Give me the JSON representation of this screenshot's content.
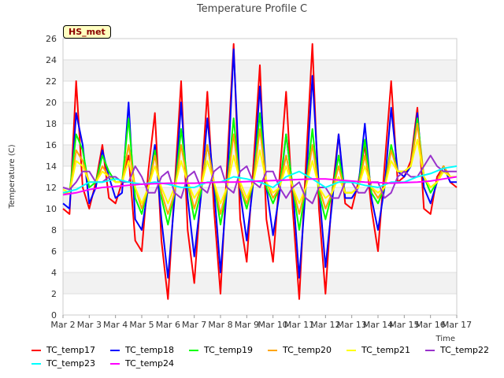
{
  "chart_data": {
    "type": "line",
    "title": "Temperature Profile C",
    "xlabel": "Time",
    "ylabel": "Temperature (C)",
    "badge": "HS_met",
    "x_ticks": [
      "Mar 2",
      "Mar 3",
      "Mar 4",
      "Mar 5",
      "Mar 6",
      "Mar 7",
      "Mar 8",
      "Mar 9",
      "Mar 10",
      "Mar 11",
      "Mar 12",
      "Mar 13",
      "Mar 14",
      "Mar 15",
      "Mar 16",
      "Mar 17"
    ],
    "xlim": [
      0,
      15
    ],
    "ylim": [
      0,
      26
    ],
    "y_ticks": [
      0,
      2,
      4,
      6,
      8,
      10,
      12,
      14,
      16,
      18,
      20,
      22,
      24,
      26
    ],
    "grid": true,
    "legend_position": "bottom",
    "x_unit": "days since Mar 2",
    "series": [
      {
        "name": "TC_temp17",
        "color": "#ff0000",
        "x": [
          0.0,
          0.25,
          0.5,
          0.75,
          1.0,
          1.25,
          1.5,
          1.75,
          2.0,
          2.25,
          2.5,
          2.75,
          3.0,
          3.25,
          3.5,
          3.75,
          4.0,
          4.25,
          4.5,
          4.75,
          5.0,
          5.25,
          5.5,
          5.75,
          6.0,
          6.25,
          6.5,
          6.75,
          7.0,
          7.25,
          7.5,
          7.75,
          8.0,
          8.25,
          8.5,
          8.75,
          9.0,
          9.25,
          9.5,
          9.75,
          10.0,
          10.25,
          10.5,
          10.75,
          11.0,
          11.25,
          11.5,
          11.75,
          12.0,
          12.25,
          12.5,
          12.75,
          13.0,
          13.25,
          13.5,
          13.75,
          14.0,
          14.25,
          14.5,
          14.75,
          15.0
        ],
        "values": [
          10.0,
          9.5,
          22.0,
          12.0,
          10.0,
          12.5,
          16.0,
          11.0,
          10.5,
          12.5,
          15.0,
          7.0,
          6.0,
          13.5,
          19.0,
          7.0,
          1.5,
          12.0,
          22.0,
          8.0,
          3.0,
          11.5,
          21.0,
          10.0,
          2.0,
          14.0,
          25.5,
          9.0,
          5.0,
          14.0,
          23.5,
          9.0,
          5.0,
          13.0,
          21.0,
          10.0,
          1.5,
          14.0,
          25.5,
          10.0,
          2.0,
          11.5,
          17.0,
          10.5,
          10.0,
          12.5,
          16.0,
          10.0,
          6.0,
          14.0,
          22.0,
          12.5,
          13.0,
          14.5,
          19.5,
          10.0,
          9.5,
          13.0,
          14.0,
          12.5,
          12.0
        ]
      },
      {
        "name": "TC_temp18",
        "color": "#0000ff",
        "x": [
          0.0,
          0.25,
          0.5,
          0.75,
          1.0,
          1.25,
          1.5,
          1.75,
          2.0,
          2.25,
          2.5,
          2.75,
          3.0,
          3.25,
          3.5,
          3.75,
          4.0,
          4.25,
          4.5,
          4.75,
          5.0,
          5.25,
          5.5,
          5.75,
          6.0,
          6.25,
          6.5,
          6.75,
          7.0,
          7.25,
          7.5,
          7.75,
          8.0,
          8.25,
          8.5,
          8.75,
          9.0,
          9.25,
          9.5,
          9.75,
          10.0,
          10.25,
          10.5,
          10.75,
          11.0,
          11.25,
          11.5,
          11.75,
          12.0,
          12.25,
          12.5,
          12.75,
          13.0,
          13.25,
          13.5,
          13.75,
          14.0,
          14.25,
          14.5,
          14.75,
          15.0
        ],
        "values": [
          10.5,
          10.0,
          19.0,
          16.0,
          10.5,
          12.0,
          15.5,
          13.0,
          11.0,
          11.5,
          20.0,
          9.0,
          8.0,
          12.0,
          16.0,
          9.0,
          3.5,
          11.0,
          20.0,
          11.0,
          5.5,
          11.0,
          18.5,
          12.0,
          4.0,
          12.0,
          25.0,
          11.5,
          7.0,
          12.5,
          21.5,
          12.0,
          7.5,
          11.5,
          17.0,
          12.0,
          3.5,
          12.0,
          22.5,
          12.0,
          4.5,
          10.5,
          17.0,
          11.0,
          11.0,
          12.0,
          18.0,
          11.0,
          8.0,
          12.0,
          19.5,
          13.5,
          13.0,
          14.0,
          19.0,
          12.0,
          10.5,
          12.5,
          14.0,
          12.5,
          12.5
        ]
      },
      {
        "name": "TC_temp19",
        "color": "#00ff00",
        "x": [
          0.0,
          0.25,
          0.5,
          0.75,
          1.0,
          1.25,
          1.5,
          1.75,
          2.0,
          2.25,
          2.5,
          2.75,
          3.0,
          3.25,
          3.5,
          3.75,
          4.0,
          4.25,
          4.5,
          4.75,
          5.0,
          5.25,
          5.5,
          5.75,
          6.0,
          6.25,
          6.5,
          6.75,
          7.0,
          7.25,
          7.5,
          7.75,
          8.0,
          8.25,
          8.5,
          8.75,
          9.0,
          9.25,
          9.5,
          9.75,
          10.0,
          10.25,
          10.5,
          10.75,
          11.0,
          11.25,
          11.5,
          11.75,
          12.0,
          12.25,
          12.5,
          12.75,
          13.0,
          13.25,
          13.5,
          13.75,
          14.0,
          14.25,
          14.5,
          14.75,
          15.0
        ],
        "values": [
          11.5,
          11.5,
          17.0,
          15.5,
          12.0,
          12.5,
          15.0,
          13.5,
          12.5,
          12.5,
          18.5,
          11.0,
          9.5,
          12.0,
          15.5,
          11.0,
          8.5,
          11.5,
          17.5,
          12.5,
          9.0,
          11.5,
          16.0,
          12.5,
          8.5,
          12.0,
          18.5,
          12.0,
          10.0,
          12.5,
          19.0,
          12.0,
          10.5,
          12.0,
          17.0,
          12.0,
          8.0,
          12.0,
          17.5,
          11.5,
          9.0,
          11.5,
          15.0,
          11.5,
          11.5,
          12.0,
          16.5,
          11.5,
          10.5,
          12.0,
          16.0,
          13.5,
          13.5,
          14.0,
          18.5,
          13.0,
          11.5,
          12.5,
          14.0,
          13.0,
          13.0
        ]
      },
      {
        "name": "TC_temp20",
        "color": "#ffa500",
        "x": [
          0.0,
          0.25,
          0.5,
          0.75,
          1.0,
          1.25,
          1.5,
          1.75,
          2.0,
          2.25,
          2.5,
          2.75,
          3.0,
          3.25,
          3.5,
          3.75,
          4.0,
          4.25,
          4.5,
          4.75,
          5.0,
          5.25,
          5.5,
          5.75,
          6.0,
          6.25,
          6.5,
          6.75,
          7.0,
          7.25,
          7.5,
          7.75,
          8.0,
          8.25,
          8.5,
          8.75,
          9.0,
          9.25,
          9.5,
          9.75,
          10.0,
          10.25,
          10.5,
          10.75,
          11.0,
          11.25,
          11.5,
          11.75,
          12.0,
          12.25,
          12.5,
          12.75,
          13.0,
          13.25,
          13.5,
          13.75,
          14.0,
          14.25,
          14.5,
          14.75,
          15.0
        ],
        "values": [
          11.5,
          11.5,
          15.5,
          14.5,
          12.5,
          12.5,
          14.0,
          13.0,
          12.5,
          12.5,
          16.0,
          12.0,
          10.0,
          12.0,
          15.0,
          11.5,
          9.5,
          11.5,
          16.0,
          12.5,
          10.0,
          12.0,
          16.0,
          12.5,
          9.5,
          12.0,
          17.0,
          12.0,
          10.5,
          12.5,
          17.5,
          12.5,
          11.0,
          12.0,
          15.0,
          12.0,
          9.5,
          12.0,
          16.0,
          12.0,
          10.0,
          11.5,
          14.0,
          11.5,
          11.5,
          12.0,
          15.0,
          12.0,
          11.0,
          12.0,
          15.5,
          13.5,
          13.5,
          14.0,
          18.0,
          13.0,
          12.0,
          12.5,
          14.0,
          13.0,
          13.0
        ]
      },
      {
        "name": "TC_temp21",
        "color": "#ffff00",
        "x": [
          0.0,
          0.25,
          0.5,
          0.75,
          1.0,
          1.25,
          1.5,
          1.75,
          2.0,
          2.25,
          2.5,
          2.75,
          3.0,
          3.25,
          3.5,
          3.75,
          4.0,
          4.25,
          4.5,
          4.75,
          5.0,
          5.25,
          5.5,
          5.75,
          6.0,
          6.25,
          6.5,
          6.75,
          7.0,
          7.25,
          7.5,
          7.75,
          8.0,
          8.25,
          8.5,
          8.75,
          9.0,
          9.25,
          9.5,
          9.75,
          10.0,
          10.25,
          10.5,
          10.75,
          11.0,
          11.25,
          11.5,
          11.75,
          12.0,
          12.25,
          12.5,
          12.75,
          13.0,
          13.25,
          13.5,
          13.75,
          14.0,
          14.25,
          14.5,
          14.75,
          15.0
        ],
        "values": [
          11.8,
          11.5,
          14.5,
          14.0,
          12.5,
          12.5,
          13.5,
          13.0,
          12.5,
          12.5,
          14.5,
          12.0,
          10.5,
          12.0,
          14.0,
          12.0,
          10.5,
          12.0,
          14.5,
          12.5,
          11.0,
          12.0,
          14.5,
          12.5,
          10.5,
          12.0,
          15.0,
          12.5,
          11.0,
          12.5,
          15.5,
          12.5,
          11.5,
          12.0,
          14.0,
          12.0,
          10.5,
          12.0,
          14.5,
          12.0,
          11.0,
          11.5,
          13.0,
          11.5,
          11.5,
          12.0,
          14.0,
          12.0,
          11.5,
          12.0,
          14.5,
          13.5,
          13.5,
          14.0,
          16.5,
          13.0,
          12.0,
          12.5,
          13.5,
          13.0,
          13.0
        ]
      },
      {
        "name": "TC_temp22",
        "color": "#9932cc",
        "x": [
          0.0,
          0.25,
          0.5,
          0.75,
          1.0,
          1.25,
          1.5,
          1.75,
          2.0,
          2.25,
          2.5,
          2.75,
          3.0,
          3.25,
          3.5,
          3.75,
          4.0,
          4.25,
          4.5,
          4.75,
          5.0,
          5.25,
          5.5,
          5.75,
          6.0,
          6.25,
          6.5,
          6.75,
          7.0,
          7.25,
          7.5,
          7.75,
          8.0,
          8.25,
          8.5,
          8.75,
          9.0,
          9.25,
          9.5,
          9.75,
          10.0,
          10.25,
          10.5,
          10.75,
          11.0,
          11.25,
          11.5,
          11.75,
          12.0,
          12.25,
          12.5,
          12.75,
          13.0,
          13.25,
          13.5,
          13.75,
          14.0,
          14.25,
          14.5,
          14.75,
          15.0
        ],
        "values": [
          12.0,
          11.8,
          12.5,
          13.5,
          13.5,
          12.5,
          12.5,
          13.0,
          13.0,
          12.5,
          12.5,
          14.0,
          13.0,
          11.5,
          11.5,
          13.0,
          13.5,
          11.5,
          11.0,
          13.0,
          13.5,
          12.0,
          11.5,
          13.5,
          14.0,
          12.0,
          11.5,
          13.5,
          14.0,
          12.5,
          12.0,
          13.5,
          13.5,
          12.0,
          11.0,
          12.0,
          12.5,
          11.0,
          10.5,
          12.0,
          12.0,
          11.0,
          11.0,
          12.5,
          12.5,
          11.5,
          11.5,
          12.5,
          12.5,
          11.0,
          11.5,
          13.0,
          13.5,
          13.0,
          13.0,
          14.0,
          15.0,
          14.0,
          13.5,
          13.5,
          13.5
        ]
      },
      {
        "name": "TC_temp23",
        "color": "#00ffff",
        "x": [
          0.0,
          0.5,
          1.0,
          1.5,
          2.0,
          2.5,
          3.0,
          3.5,
          4.0,
          4.5,
          5.0,
          5.5,
          6.0,
          6.5,
          7.0,
          7.5,
          8.0,
          8.5,
          9.0,
          9.5,
          10.0,
          10.5,
          11.0,
          11.5,
          12.0,
          12.5,
          13.0,
          13.5,
          14.0,
          14.5,
          15.0
        ],
        "values": [
          11.5,
          11.8,
          12.5,
          12.5,
          12.8,
          12.5,
          12.3,
          12.5,
          12.3,
          12.0,
          12.0,
          12.5,
          12.5,
          13.0,
          12.8,
          12.5,
          12.0,
          13.0,
          13.5,
          12.8,
          12.0,
          12.5,
          12.5,
          12.2,
          12.0,
          12.5,
          12.5,
          13.0,
          13.3,
          13.8,
          14.0
        ]
      },
      {
        "name": "TC_temp24",
        "color": "#ff00ff",
        "x": [
          0.0,
          0.5,
          1.0,
          1.5,
          2.0,
          2.5,
          3.0,
          3.5,
          4.0,
          4.5,
          5.0,
          5.5,
          6.0,
          6.5,
          7.0,
          7.5,
          8.0,
          8.5,
          9.0,
          9.5,
          10.0,
          10.5,
          11.0,
          11.5,
          12.0,
          12.5,
          13.0,
          13.5,
          14.0,
          14.5,
          15.0
        ],
        "values": [
          11.3,
          11.5,
          11.8,
          12.0,
          12.1,
          12.2,
          12.3,
          12.35,
          12.4,
          12.4,
          12.4,
          12.45,
          12.5,
          12.5,
          12.55,
          12.6,
          12.65,
          12.7,
          12.75,
          12.8,
          12.8,
          12.7,
          12.6,
          12.5,
          12.45,
          12.4,
          12.45,
          12.5,
          12.6,
          12.8,
          13.0
        ]
      }
    ]
  }
}
